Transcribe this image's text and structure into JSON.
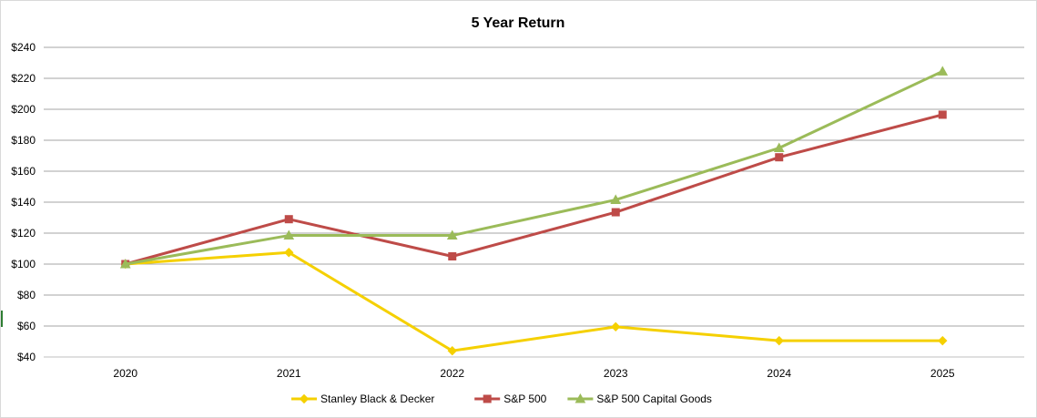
{
  "chart_data": {
    "type": "line",
    "title": "5 Year Return",
    "xlabel": "",
    "ylabel": "",
    "categories": [
      "2020",
      "2021",
      "2022",
      "2023",
      "2024",
      "2025"
    ],
    "ylim": [
      40,
      240
    ],
    "yticks": [
      40,
      60,
      80,
      100,
      120,
      140,
      160,
      180,
      200,
      220,
      240
    ],
    "ytick_labels": [
      "$40",
      "$60",
      "$80",
      "$100",
      "$120",
      "$140",
      "$160",
      "$180",
      "$200",
      "$220",
      "$240"
    ],
    "grid": true,
    "legend_position": "bottom",
    "series": [
      {
        "name": "Stanley Black & Decker",
        "color": "#f5d000",
        "marker": "diamond",
        "values": [
          100,
          107.5,
          44,
          59.5,
          50.5,
          50.5
        ]
      },
      {
        "name": "S&P 500",
        "color": "#be4b48",
        "marker": "square",
        "values": [
          100,
          129,
          105,
          133.5,
          169,
          196.5
        ]
      },
      {
        "name": "S&P 500 Capital Goods",
        "color": "#9bbb59",
        "marker": "triangle",
        "values": [
          100,
          118.5,
          118.5,
          141.5,
          175,
          224.5
        ]
      }
    ]
  }
}
